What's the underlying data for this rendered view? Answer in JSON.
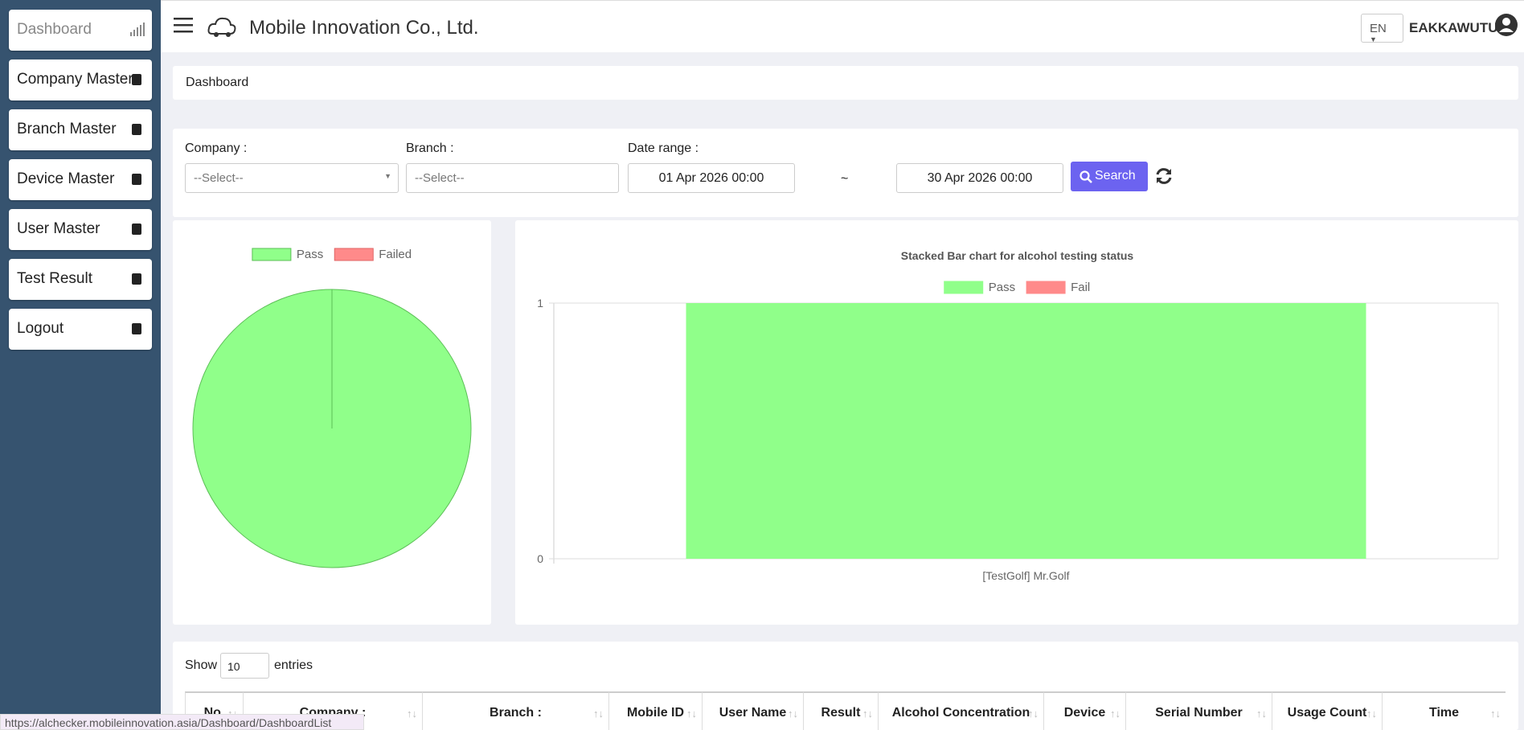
{
  "menu": [
    "Dashboard",
    "Company Master",
    "Branch Master",
    "Device Master",
    "User Master",
    "Test Result",
    "Logout"
  ],
  "header": {
    "title": "Mobile Innovation Co., Ltd.",
    "language": "EN",
    "user": "EAKKAWUTU"
  },
  "breadcrumb": "Dashboard",
  "filters": {
    "company_label": "Company :",
    "company_value": "--Select--",
    "branch_label": "Branch :",
    "branch_value": "--Select--",
    "date_label": "Date range :",
    "date_from": "01 Apr 2026 00:00",
    "separator": "~",
    "date_to": "30 Apr 2026 00:00",
    "search": "Search"
  },
  "chart_data": [
    {
      "type": "pie",
      "categories": [
        "Pass",
        "Failed"
      ],
      "values": [
        1,
        0
      ],
      "colors": [
        "#90ff8a",
        "#ff8a8a"
      ],
      "stroke_colors": [
        "#5cbf57",
        "#e06666"
      ]
    },
    {
      "type": "bar",
      "stacked": true,
      "title": "Stacked Bar chart for alcohol testing status",
      "categories": [
        "[TestGolf] Mr.Golf"
      ],
      "series": [
        {
          "name": "Pass",
          "color": "#90ff8a",
          "values": [
            1
          ]
        },
        {
          "name": "Fail",
          "color": "#ff8a8a",
          "values": [
            0
          ]
        }
      ],
      "ylim": [
        0,
        1
      ],
      "yticks": [
        0,
        1
      ],
      "grid": true
    }
  ],
  "table": {
    "show": "Show",
    "page_size": "10",
    "entries": "entries",
    "headers": [
      "No.",
      "Company :",
      "Branch :",
      "Mobile ID",
      "User Name",
      "Result",
      "Alcohol Concentration",
      "Device",
      "Serial Number",
      "Usage Count",
      "Time"
    ]
  },
  "status_url": "https://alchecker.mobileinnovation.asia/Dashboard/DashboardList"
}
